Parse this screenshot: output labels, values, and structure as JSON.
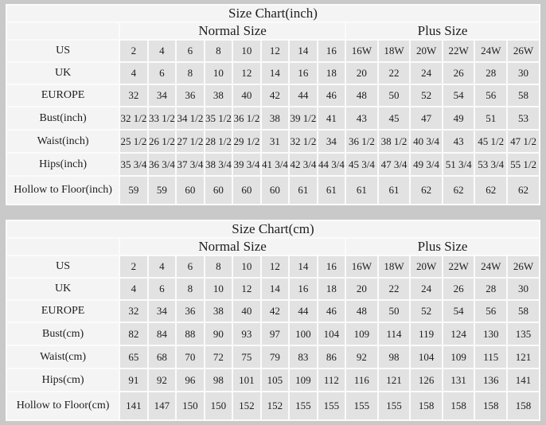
{
  "page": {
    "background_color": "#c9c9c9",
    "table_background": "#fbfbfb",
    "header_cell_color": "#f4f4f4",
    "data_cell_color": "#e2e2e2",
    "text_color": "#1d1d1d"
  },
  "chart_data": [
    {
      "type": "table",
      "title": "Size Chart(inch)",
      "column_groups": [
        {
          "label": "Normal Size",
          "span": 8
        },
        {
          "label": "Plus Size",
          "span": 6
        }
      ],
      "rows": [
        {
          "label": "US",
          "normal": [
            "2",
            "4",
            "6",
            "8",
            "10",
            "12",
            "14",
            "16"
          ],
          "plus": [
            "16W",
            "18W",
            "20W",
            "22W",
            "24W",
            "26W"
          ]
        },
        {
          "label": "UK",
          "normal": [
            "4",
            "6",
            "8",
            "10",
            "12",
            "14",
            "16",
            "18"
          ],
          "plus": [
            "20",
            "22",
            "24",
            "26",
            "28",
            "30"
          ]
        },
        {
          "label": "EUROPE",
          "normal": [
            "32",
            "34",
            "36",
            "38",
            "40",
            "42",
            "44",
            "46"
          ],
          "plus": [
            "48",
            "50",
            "52",
            "54",
            "56",
            "58"
          ]
        },
        {
          "label": "Bust(inch)",
          "normal": [
            "32 1/2",
            "33 1/2",
            "34 1/2",
            "35 1/2",
            "36 1/2",
            "38",
            "39 1/2",
            "41"
          ],
          "plus": [
            "43",
            "45",
            "47",
            "49",
            "51",
            "53"
          ]
        },
        {
          "label": "Waist(inch)",
          "normal": [
            "25 1/2",
            "26 1/2",
            "27 1/2",
            "28 1/2",
            "29 1/2",
            "31",
            "32 1/2",
            "34"
          ],
          "plus": [
            "36 1/2",
            "38 1/2",
            "40 3/4",
            "43",
            "45 1/2",
            "47 1/2"
          ]
        },
        {
          "label": "Hips(inch)",
          "normal": [
            "35 3/4",
            "36 3/4",
            "37 3/4",
            "38 3/4",
            "39 3/4",
            "41 3/4",
            "42 3/4",
            "44 3/4"
          ],
          "plus": [
            "45 3/4",
            "47 3/4",
            "49 3/4",
            "51 3/4",
            "53 3/4",
            "55 1/2"
          ]
        },
        {
          "label": "Hollow to Floor(inch)",
          "normal": [
            "59",
            "59",
            "60",
            "60",
            "60",
            "60",
            "61",
            "61"
          ],
          "plus": [
            "61",
            "61",
            "62",
            "62",
            "62",
            "62"
          ]
        }
      ]
    },
    {
      "type": "table",
      "title": "Size Chart(cm)",
      "column_groups": [
        {
          "label": "Normal Size",
          "span": 8
        },
        {
          "label": "Plus Size",
          "span": 6
        }
      ],
      "rows": [
        {
          "label": "US",
          "normal": [
            "2",
            "4",
            "6",
            "8",
            "10",
            "12",
            "14",
            "16"
          ],
          "plus": [
            "16W",
            "18W",
            "20W",
            "22W",
            "24W",
            "26W"
          ]
        },
        {
          "label": "UK",
          "normal": [
            "4",
            "6",
            "8",
            "10",
            "12",
            "14",
            "16",
            "18"
          ],
          "plus": [
            "20",
            "22",
            "24",
            "26",
            "28",
            "30"
          ]
        },
        {
          "label": "EUROPE",
          "normal": [
            "32",
            "34",
            "36",
            "38",
            "40",
            "42",
            "44",
            "46"
          ],
          "plus": [
            "48",
            "50",
            "52",
            "54",
            "56",
            "58"
          ]
        },
        {
          "label": "Bust(cm)",
          "normal": [
            "82",
            "84",
            "88",
            "90",
            "93",
            "97",
            "100",
            "104"
          ],
          "plus": [
            "109",
            "114",
            "119",
            "124",
            "130",
            "135"
          ]
        },
        {
          "label": "Waist(cm)",
          "normal": [
            "65",
            "68",
            "70",
            "72",
            "75",
            "79",
            "83",
            "86"
          ],
          "plus": [
            "92",
            "98",
            "104",
            "109",
            "115",
            "121"
          ]
        },
        {
          "label": "Hips(cm)",
          "normal": [
            "91",
            "92",
            "96",
            "98",
            "101",
            "105",
            "109",
            "112"
          ],
          "plus": [
            "116",
            "121",
            "126",
            "131",
            "136",
            "141"
          ]
        },
        {
          "label": "Hollow to Floor(cm)",
          "normal": [
            "141",
            "147",
            "150",
            "150",
            "152",
            "152",
            "155",
            "155"
          ],
          "plus": [
            "155",
            "155",
            "158",
            "158",
            "158",
            "158"
          ]
        }
      ]
    }
  ]
}
